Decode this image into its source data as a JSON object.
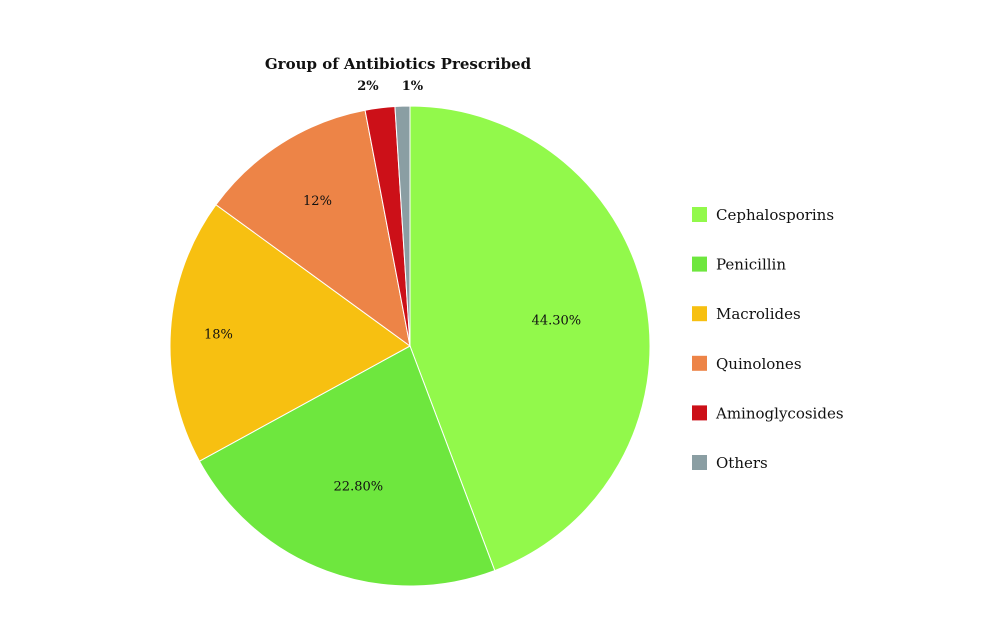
{
  "chart_data": {
    "type": "pie",
    "title": "Group of Antibiotics Prescribed",
    "legend_position": "right",
    "slices": [
      {
        "name": "Cephalosporins",
        "value": 44.3,
        "label": "44.30%",
        "color": "#92f94b"
      },
      {
        "name": "Penicillin",
        "value": 22.8,
        "label": "22.80%",
        "color": "#6ee73e"
      },
      {
        "name": "Macrolides",
        "value": 18,
        "label": "18%",
        "color": "#f7c011"
      },
      {
        "name": "Quinolones",
        "value": 12,
        "label": "12%",
        "color": "#ed8447"
      },
      {
        "name": "Aminoglycosides",
        "value": 2,
        "label": "2%",
        "color": "#cc1018"
      },
      {
        "name": "Others",
        "value": 1,
        "label": "1%",
        "color": "#8a9ea3"
      }
    ]
  }
}
